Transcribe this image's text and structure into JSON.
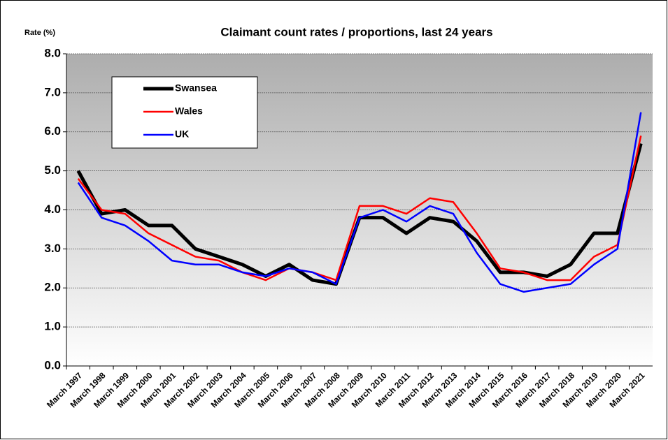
{
  "chart_data": {
    "type": "line",
    "title": "Claimant count rates / proportions, last 24 years",
    "y_label": "Rate (%)",
    "categories": [
      "March 1997",
      "March 1998",
      "March 1999",
      "March 2000",
      "March 2001",
      "March 2002",
      "March 2003",
      "March 2004",
      "March 2005",
      "March 2006",
      "March 2007",
      "March 2008",
      "March 2009",
      "March 2010",
      "March 2011",
      "March 2012",
      "March 2013",
      "March 2014",
      "March 2015",
      "March 2016",
      "March 2017",
      "March 2018",
      "March 2019",
      "March 2020",
      "March 2021"
    ],
    "series": [
      {
        "name": "Swansea",
        "color": "#000000",
        "values": [
          5.0,
          3.9,
          4.0,
          3.6,
          3.6,
          3.0,
          2.8,
          2.6,
          2.3,
          2.6,
          2.2,
          2.1,
          3.8,
          3.8,
          3.4,
          3.8,
          3.7,
          3.2,
          2.4,
          2.4,
          2.3,
          2.6,
          3.4,
          3.4,
          5.7
        ]
      },
      {
        "name": "Wales",
        "color": "#ff0000",
        "values": [
          4.8,
          4.0,
          3.9,
          3.4,
          3.1,
          2.8,
          2.7,
          2.4,
          2.2,
          2.5,
          2.4,
          2.2,
          4.1,
          4.1,
          3.9,
          4.3,
          4.2,
          3.4,
          2.5,
          2.4,
          2.2,
          2.2,
          2.8,
          3.1,
          5.9
        ]
      },
      {
        "name": "UK",
        "color": "#0000ff",
        "values": [
          4.7,
          3.8,
          3.6,
          3.2,
          2.7,
          2.6,
          2.6,
          2.4,
          2.3,
          2.5,
          2.4,
          2.1,
          3.8,
          4.0,
          3.7,
          4.1,
          3.9,
          2.9,
          2.1,
          1.9,
          2.0,
          2.1,
          2.6,
          3.0,
          6.5
        ]
      }
    ],
    "ylim": [
      0,
      8
    ],
    "yticks": [
      {
        "value": 0,
        "label": "0.0"
      },
      {
        "value": 1,
        "label": "1.0"
      },
      {
        "value": 2,
        "label": "2.0"
      },
      {
        "value": 3,
        "label": "3.0"
      },
      {
        "value": 4,
        "label": "4.0"
      },
      {
        "value": 5,
        "label": "5.0"
      },
      {
        "value": 6,
        "label": "6.0"
      },
      {
        "value": 7,
        "label": "7.0"
      },
      {
        "value": 8,
        "label": "8.0"
      }
    ],
    "grid": true
  }
}
